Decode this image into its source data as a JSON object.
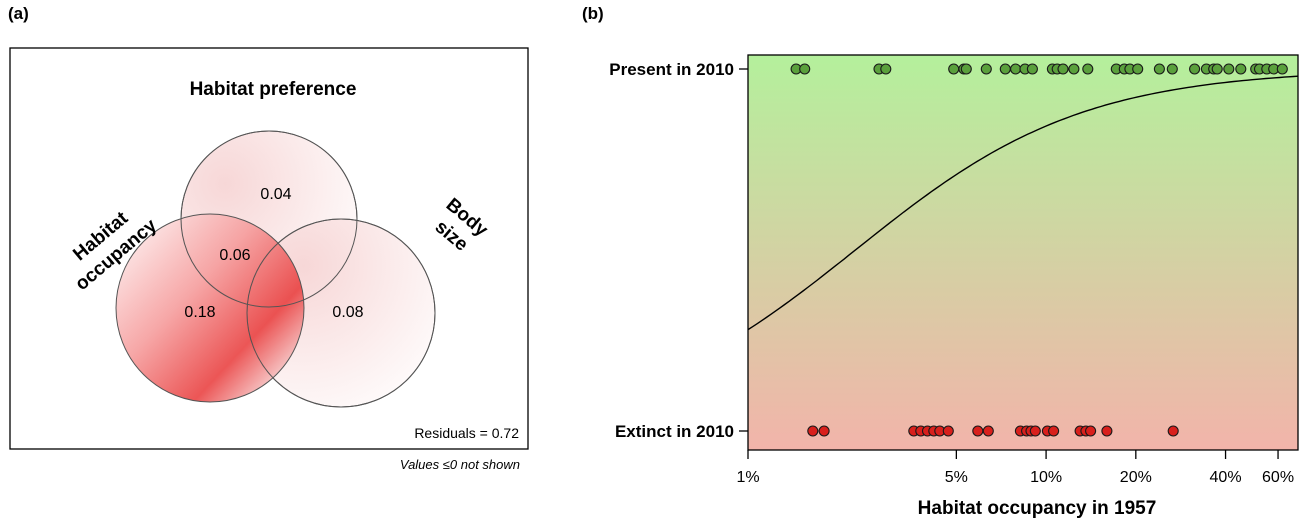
{
  "panel_a": {
    "tag": "(a)",
    "circles": {
      "top_label": "Habitat preference",
      "left_label_line1": "Habitat",
      "left_label_line2": "occupancy",
      "right_label_line1": "Body",
      "right_label_line2": "size"
    },
    "regions": {
      "habitat_preference_only": "0.04",
      "occupancy_and_preference": "0.06",
      "habitat_occupancy_only": "0.18",
      "body_size_only": "0.08"
    },
    "residuals": "Residuals = 0.72",
    "footnote": "Values ≤0 not shown",
    "colors": {
      "accent": "#e83a3a",
      "border": "#000000"
    }
  },
  "panel_b": {
    "tag": "(b)",
    "chart_data": {
      "type": "scatter",
      "title": "",
      "xlabel": "Habitat occupancy in 1957",
      "ylabel": "",
      "x_scale": "log",
      "x_ticks": [
        "1%",
        "5%",
        "10%",
        "20%",
        "40%",
        "60%"
      ],
      "x_tick_values": [
        1,
        5,
        10,
        20,
        40,
        60
      ],
      "xlim": [
        1,
        70
      ],
      "y_categories": [
        "Extinct in 2010",
        "Present in 2010"
      ],
      "series": [
        {
          "color": "#5aa03c",
          "category": "Present in 2010",
          "x": [
            1.45,
            1.55,
            2.75,
            2.9,
            4.9,
            5.3,
            5.4,
            6.3,
            7.3,
            7.9,
            8.5,
            9.0,
            10.5,
            10.9,
            11.4,
            12.4,
            13.8,
            17.2,
            18.3,
            19.1,
            20.3,
            24.0,
            26.5,
            31.5,
            34.5,
            36.5,
            37.5,
            41.0,
            45.0,
            50.5,
            52.0,
            55.0,
            58.0,
            62.0
          ]
        },
        {
          "color": "#d8201c",
          "category": "Extinct in 2010",
          "x": [
            1.65,
            1.8,
            3.6,
            3.8,
            4.0,
            4.2,
            4.4,
            4.7,
            5.9,
            6.4,
            8.2,
            8.6,
            8.9,
            9.2,
            10.1,
            10.6,
            13.0,
            13.6,
            14.1,
            16.0,
            26.7
          ]
        }
      ],
      "fitted_curve": {
        "type": "logistic",
        "x_start": 1,
        "y_start": 0.28,
        "x_end": 70,
        "y_end": 0.98
      },
      "background": {
        "top": "#b4f09c",
        "bottom": "#f2b4aa"
      },
      "grid": false
    }
  }
}
